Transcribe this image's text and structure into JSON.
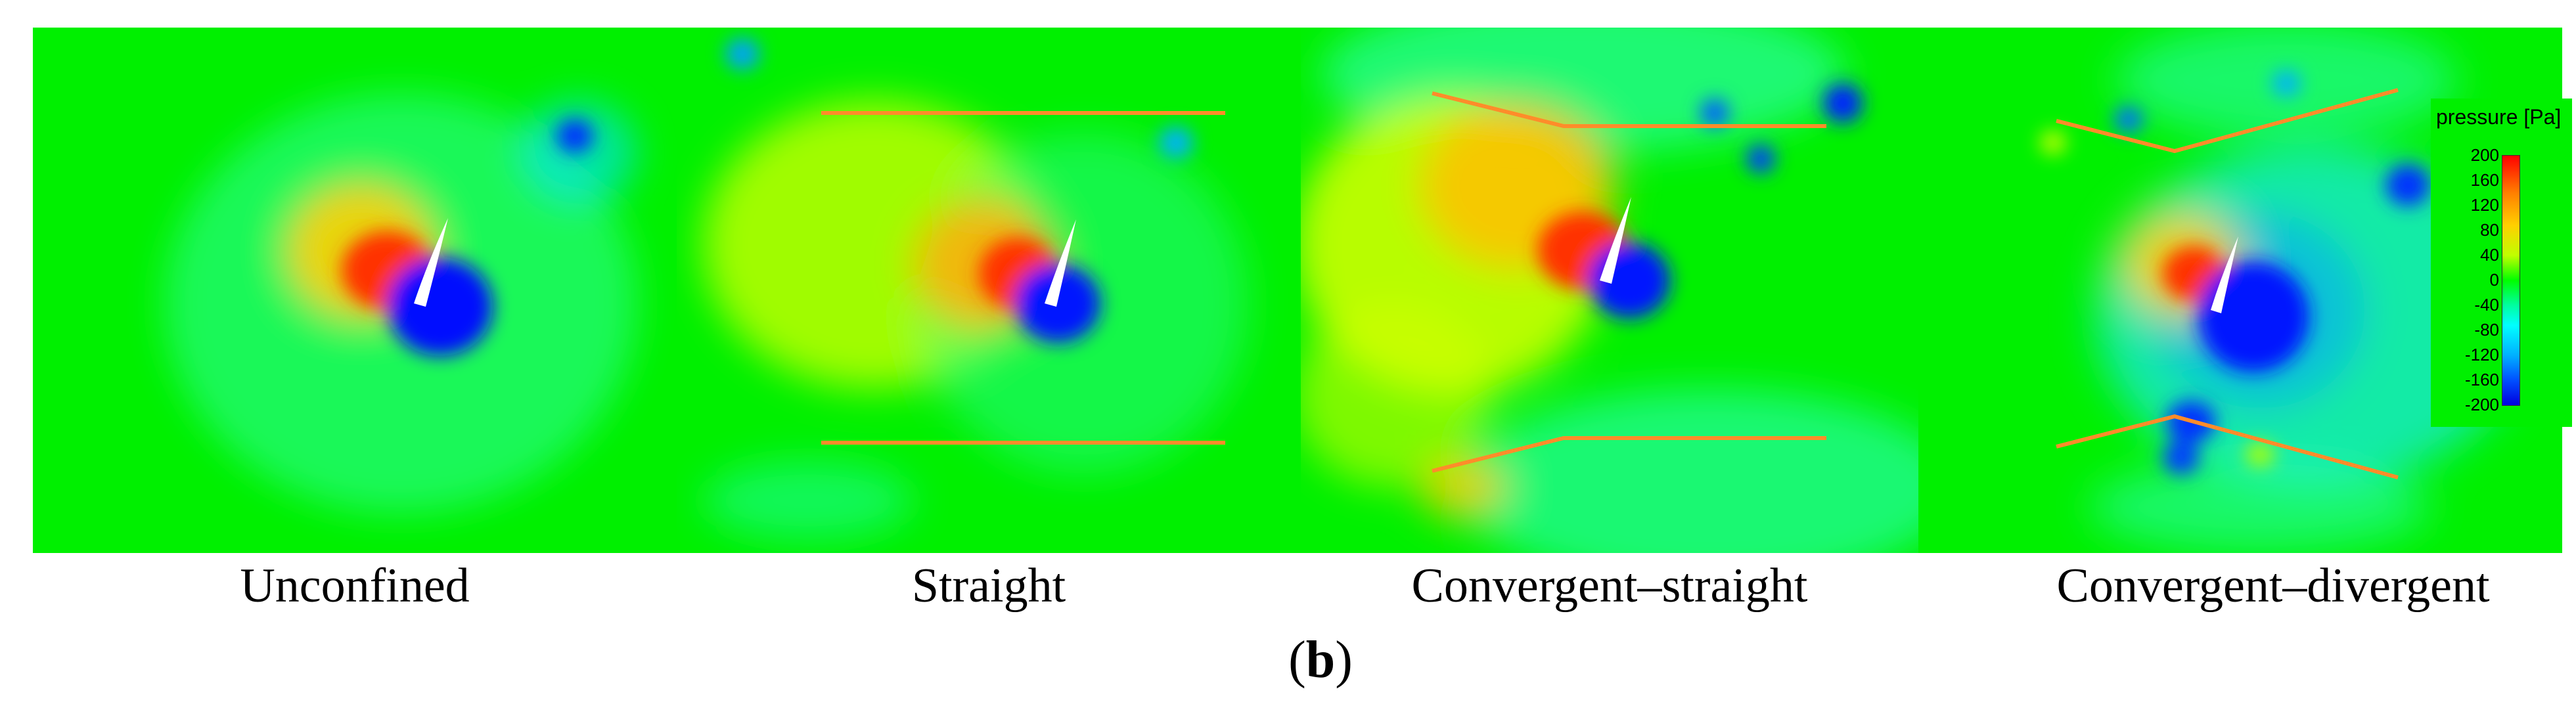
{
  "figure_label": "b",
  "panels": [
    {
      "name": "unconfined",
      "caption": "Unconfined"
    },
    {
      "name": "straight",
      "caption": "Straight"
    },
    {
      "name": "convergent-straight",
      "caption": "Convergent–straight"
    },
    {
      "name": "convergent-divergent",
      "caption": "Convergent–divergent"
    }
  ],
  "legend": {
    "title": "pressure [Pa]",
    "ticks": [
      "200",
      "160",
      "120",
      "80",
      "40",
      "0",
      "-40",
      "-80",
      "-120",
      "-160",
      "-200"
    ],
    "colormap": [
      "#ff0000",
      "#ff8000",
      "#ffd000",
      "#c0ff00",
      "#00ff00",
      "#00ffa0",
      "#00ffff",
      "#00b0ff",
      "#0050ff",
      "#0000e0"
    ]
  },
  "colors": {
    "background_field": "#00f000",
    "high_pressure": "#ff0000",
    "low_pressure": "#0000e6",
    "wall": "#ff8c2a",
    "foil": "#ffffff"
  }
}
